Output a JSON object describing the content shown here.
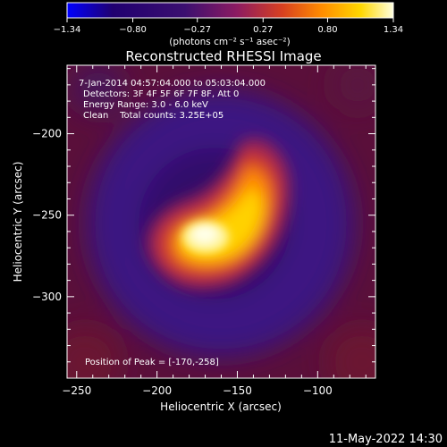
{
  "chart_data": {
    "type": "heatmap",
    "title": "Reconstructed RHESSI Image",
    "xlabel": "Heliocentric X (arcsec)",
    "ylabel": "Heliocentric Y (arcsec)",
    "xlim": [
      -256,
      -64
    ],
    "ylim": [
      -350,
      -158
    ],
    "x_ticks": [
      -250,
      -200,
      -150,
      -100
    ],
    "y_ticks": [
      -200,
      -250,
      -300
    ],
    "x_tick_labels": [
      "−250",
      "−200",
      "−150",
      "−100"
    ],
    "y_tick_labels": [
      "−200",
      "−250",
      "−300"
    ],
    "colorbar": {
      "min": -1.34,
      "max": 1.34,
      "ticks": [
        -1.34,
        -0.8,
        -0.27,
        0.27,
        0.8,
        1.34
      ],
      "tick_labels": [
        "−1.34",
        "−0.80",
        "−0.27",
        "0.27",
        "0.80",
        "1.34"
      ],
      "unit_label": "(photons cm⁻² s⁻¹ asec⁻²)",
      "colors": [
        "#0000ff",
        "#200070",
        "#3b0f70",
        "#8c1b62",
        "#d84020",
        "#ff8c00",
        "#ffd700",
        "#ffffe0"
      ]
    },
    "annotations": {
      "time_range": "7-Jan-2014 04:57:04.000 to 05:03:04.000",
      "detectors": "Detectors: 3F 4F 5F 6F 7F 8F, Att 0",
      "energy": "Energy Range: 3.0 - 6.0 keV",
      "clean": "Clean    Total counts: 3.25E+05",
      "peak": "Position of Peak = [-170,-258]"
    },
    "peak_position": [
      -170,
      -258
    ]
  },
  "footer_timestamp": "11-May-2022 14:30"
}
